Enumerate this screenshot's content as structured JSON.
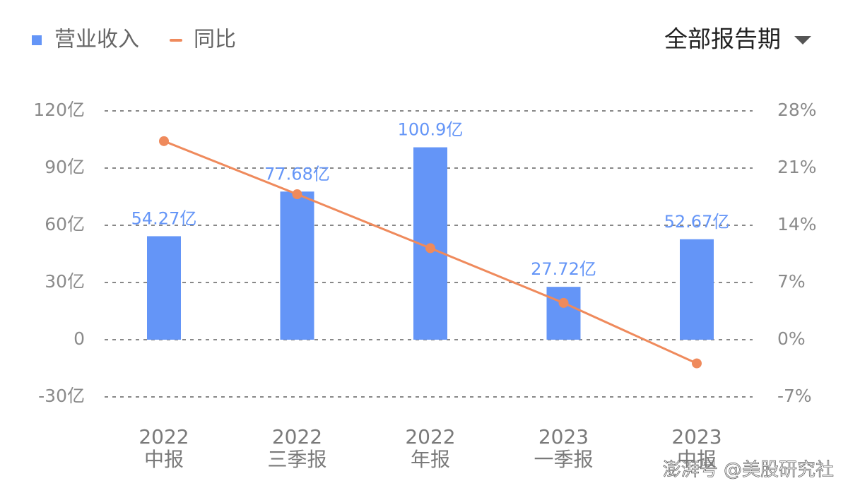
{
  "chart_data": {
    "type": "bar",
    "filter": "全部报告期",
    "watermark": "澎湃号 @美股研究社",
    "categories": [
      [
        "2022",
        "中报"
      ],
      [
        "2022",
        "三季报"
      ],
      [
        "2022",
        "年报"
      ],
      [
        "2023",
        "一季报"
      ],
      [
        "2023",
        "中报"
      ]
    ],
    "series": [
      {
        "name": "营业收入",
        "type": "bar",
        "color": "#6495f7",
        "values": [
          54.27,
          77.68,
          100.9,
          27.72,
          52.67
        ],
        "value_labels": [
          "54.27亿",
          "77.68亿",
          "100.9亿",
          "27.72亿",
          "52.67亿"
        ]
      },
      {
        "name": "同比",
        "type": "line",
        "axis": "y2",
        "color": "#ef8a5c",
        "values": [
          24.3,
          17.8,
          11.2,
          4.5,
          -2.9
        ]
      }
    ],
    "ylim": [
      -30,
      120
    ],
    "yticks": [
      {
        "value": -30,
        "label": "-30亿"
      },
      0,
      {
        "value": 30,
        "label": "30亿"
      },
      {
        "value": 60,
        "label": "60亿"
      },
      {
        "value": 90,
        "label": "90亿"
      },
      {
        "value": 120,
        "label": "120亿"
      }
    ],
    "y2lim": [
      -7,
      28
    ],
    "y2ticks": [
      {
        "value": -7,
        "label": "-7%"
      },
      {
        "value": 0,
        "label": "0%"
      },
      {
        "value": 7,
        "label": "7%"
      },
      {
        "value": 14,
        "label": "14%"
      },
      {
        "value": 21,
        "label": "21%"
      },
      {
        "value": 28,
        "label": "28%"
      }
    ],
    "grid": true
  }
}
